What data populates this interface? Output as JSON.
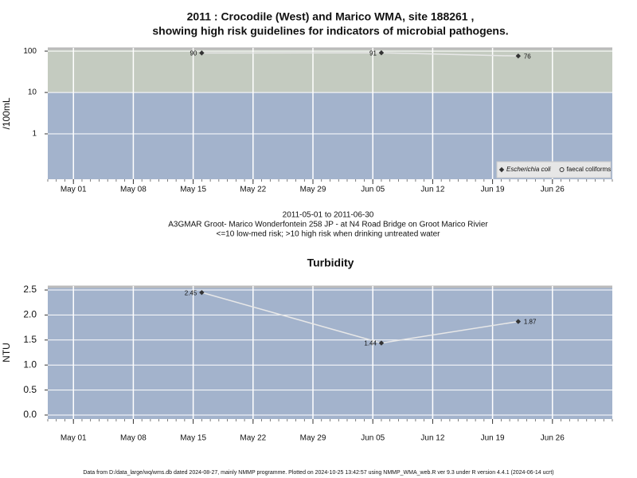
{
  "chart_data": [
    {
      "type": "line",
      "title": [
        "2011 : Crocodile (West) and Marico WMA, site 188261 ,",
        "showing high risk guidelines for indicators of microbial pathogens."
      ],
      "y_label": "/100mL",
      "notes": [
        "2011-05-01 to 2011-06-30",
        "A3GMAR Groot- Marico Wonderfontein 258 JP - at N4 Road Bridge on Groot Marico Rivier",
        "<=10 low-med risk; >10 high risk when drinking untreated water"
      ],
      "x": [
        "2011-05-16",
        "2011-06-06",
        "2011-06-22"
      ],
      "xlim": [
        "2011-04-28",
        "2011-07-03"
      ],
      "xticks": [
        {
          "value": "2011-05-01",
          "label": "May 01"
        },
        {
          "value": "2011-05-08",
          "label": "May 08"
        },
        {
          "value": "2011-05-15",
          "label": "May 15"
        },
        {
          "value": "2011-05-22",
          "label": "May 22"
        },
        {
          "value": "2011-05-29",
          "label": "May 29"
        },
        {
          "value": "2011-06-05",
          "label": "Jun 05"
        },
        {
          "value": "2011-06-12",
          "label": "Jun 12"
        },
        {
          "value": "2011-06-19",
          "label": "Jun 19"
        },
        {
          "value": "2011-06-26",
          "label": "Jun 26"
        }
      ],
      "log_y": true,
      "ylim": [
        0.08,
        120
      ],
      "yticks": [
        1,
        10,
        100
      ],
      "threshold": 10,
      "band_colors": [
        "#a3b3cc",
        "#c4cbc0"
      ],
      "grid": true,
      "line_color": "#e8e8e8",
      "legend": "bottom-right",
      "series": [
        {
          "name": "Escherichia coli",
          "color": "#333333",
          "marker": "diamond",
          "values": [
            90,
            91,
            76
          ]
        },
        {
          "name": "faecal coliforms",
          "color": "#333333",
          "marker": "circle",
          "values": [
            null,
            null,
            null
          ]
        }
      ]
    },
    {
      "type": "line",
      "title": [
        "Turbidity"
      ],
      "y_label": "NTU",
      "x": [
        "2011-05-16",
        "2011-06-06",
        "2011-06-22"
      ],
      "xlim": [
        "2011-04-28",
        "2011-07-03"
      ],
      "xticks": [
        {
          "value": "2011-05-01",
          "label": "May 01"
        },
        {
          "value": "2011-05-08",
          "label": "May 08"
        },
        {
          "value": "2011-05-15",
          "label": "May 15"
        },
        {
          "value": "2011-05-22",
          "label": "May 22"
        },
        {
          "value": "2011-05-29",
          "label": "May 29"
        },
        {
          "value": "2011-06-05",
          "label": "Jun 05"
        },
        {
          "value": "2011-06-12",
          "label": "Jun 12"
        },
        {
          "value": "2011-06-19",
          "label": "Jun 19"
        },
        {
          "value": "2011-06-26",
          "label": "Jun 26"
        }
      ],
      "log_y": false,
      "ylim": [
        -0.08,
        2.58
      ],
      "yticks": [
        {
          "value": 0,
          "label": "0.0"
        },
        0.5,
        {
          "value": 1,
          "label": "1.0"
        },
        1.5,
        {
          "value": 2,
          "label": "2.0"
        },
        2.5
      ],
      "band_colors": [
        "#a3b3cc"
      ],
      "grid": true,
      "line_color": "#e8e8e8",
      "series": [
        {
          "name": "Turbidity",
          "color": "#333333",
          "marker": "diamond",
          "values": [
            2.45,
            1.44,
            1.87
          ]
        }
      ]
    }
  ],
  "footer": "Data from D:/data_large/wq/wms.db dated 2024-08-27, mainly NMMP programme. Plotted on 2024-10-25 13:42:57 using NMMP_WMA_web.R ver 9.3 under R version 4.4.1 (2024-06-14 ucrt)"
}
